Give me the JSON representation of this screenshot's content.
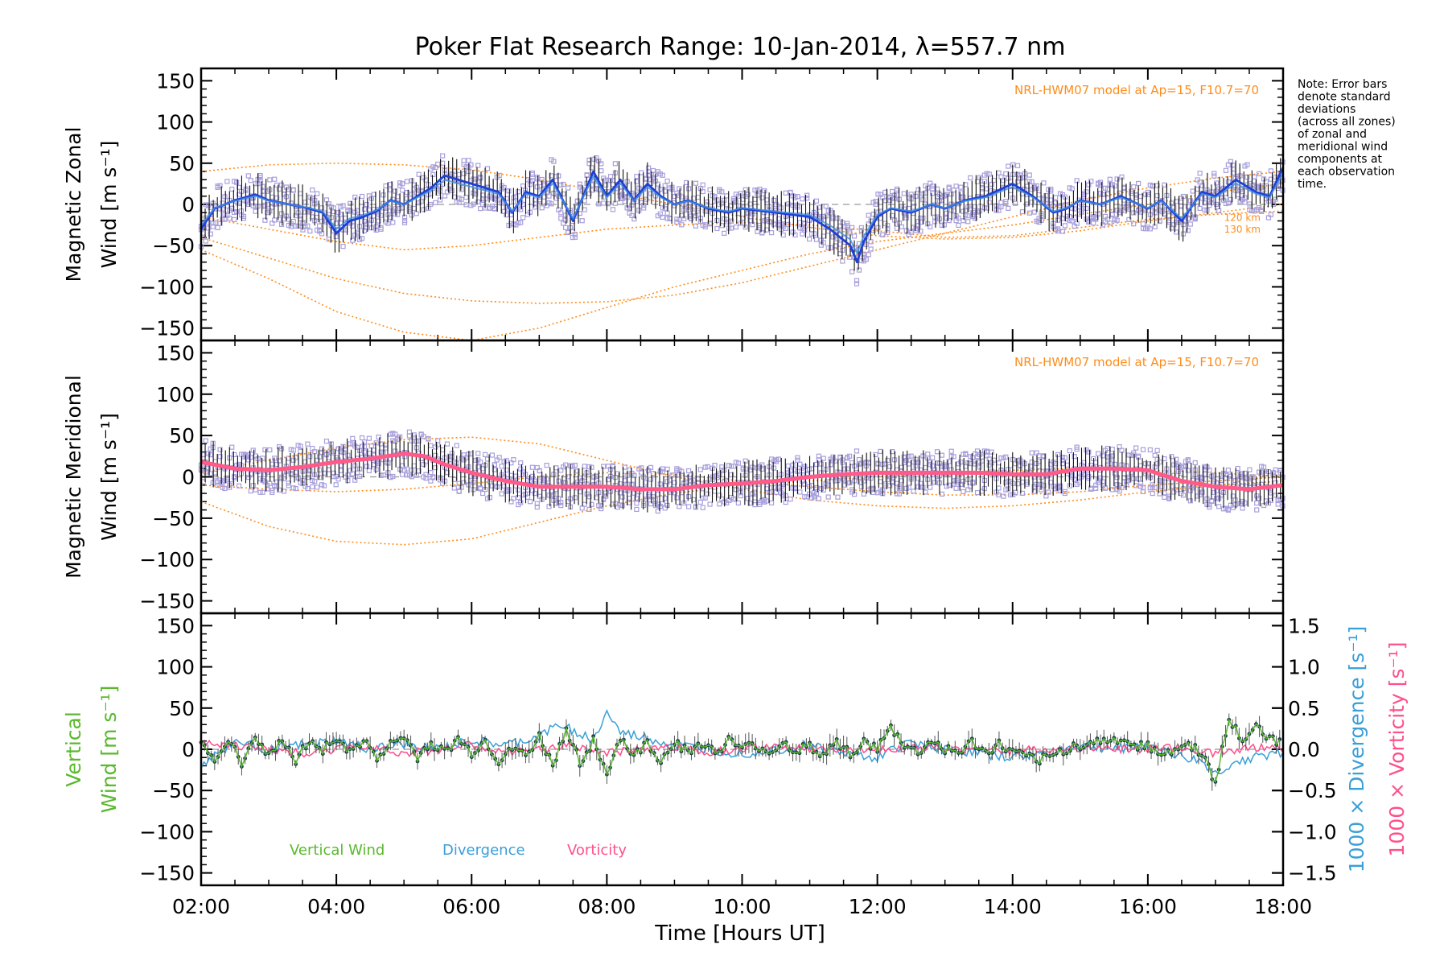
{
  "chart_data": {
    "type": "line",
    "title": "Poker Flat Research Range: 10-Jan-2014, λ=557.7 nm",
    "xlabel": "Time [Hours UT]",
    "xlim": [
      2,
      18
    ],
    "x_ticks": [
      2,
      4,
      6,
      8,
      10,
      12,
      14,
      16,
      18
    ],
    "x_tick_labels": [
      "02:00",
      "04:00",
      "06:00",
      "08:00",
      "10:00",
      "12:00",
      "14:00",
      "16:00",
      "18:00"
    ],
    "note": [
      "Note: Error bars",
      "denote standard",
      "deviations",
      "(across all zones)",
      "of zonal and",
      "meridional wind",
      "components at",
      "each observation",
      "time."
    ],
    "colors": {
      "zonal": "#1f3fd8",
      "zonal_mean": "#3f8fe6",
      "meridional": "#ff5a8a",
      "model": "#ff8c1a",
      "zones": "#a8a0dc",
      "vertical": "#5ab82d",
      "divergence": "#3a9fd8",
      "vorticity": "#ff4f8c",
      "vertical_points": "#1a3f4a",
      "error_bars": "#111111"
    },
    "panels": [
      {
        "id": "zonal",
        "ylabel_lines": [
          "Magnetic Zonal",
          "Wind"
        ],
        "yunit": "[m s⁻¹]",
        "ylim": [
          -165,
          165
        ],
        "y_ticks": [
          150,
          100,
          50,
          0,
          -50,
          -100,
          -150
        ],
        "y_tick_labels": [
          "150",
          "100",
          "50",
          "0",
          "−50",
          "−100",
          "−150"
        ],
        "annotation": "NRL-HWM07 model at Ap=15, F10.7=70",
        "model_labels": [
          "120 km",
          "130 km"
        ],
        "series": [
          {
            "name": "",
            "x": [
              2.0,
              2.2,
              2.5,
              2.8,
              3.0,
              3.3,
              3.6,
              3.8,
              4.0,
              4.2,
              4.4,
              4.6,
              4.8,
              5.0,
              5.2,
              5.4,
              5.6,
              5.8,
              6.0,
              6.2,
              6.4,
              6.6,
              6.8,
              7.0,
              7.2,
              7.5,
              7.8,
              8.0,
              8.2,
              8.4,
              8.6,
              8.8,
              9.0,
              9.2,
              9.5,
              9.8,
              10.0,
              10.5,
              11.0,
              11.3,
              11.6,
              11.7,
              11.8,
              12.0,
              12.2,
              12.5,
              12.8,
              13.0,
              13.3,
              13.6,
              14.0,
              14.3,
              14.6,
              14.8,
              15.0,
              15.3,
              15.6,
              16.0,
              16.2,
              16.5,
              16.8,
              17.0,
              17.3,
              17.6,
              17.8,
              18.0
            ],
            "y": [
              -30,
              -5,
              5,
              12,
              5,
              0,
              -5,
              -10,
              -35,
              -20,
              -15,
              -8,
              5,
              0,
              10,
              20,
              35,
              30,
              25,
              20,
              15,
              -10,
              15,
              10,
              30,
              -20,
              40,
              10,
              30,
              5,
              25,
              10,
              0,
              5,
              -5,
              -10,
              -5,
              -10,
              -15,
              -30,
              -50,
              -70,
              -45,
              -15,
              -5,
              -10,
              0,
              -5,
              5,
              10,
              25,
              10,
              -10,
              -5,
              5,
              0,
              10,
              -5,
              5,
              -20,
              15,
              10,
              30,
              15,
              10,
              45
            ]
          }
        ],
        "model_curves": [
          {
            "x": [
              2,
              3,
              4,
              5,
              6,
              7,
              8,
              9,
              10,
              11,
              12,
              13,
              14,
              15,
              16,
              17,
              18
            ],
            "y": [
              -55,
              -90,
              -130,
              -155,
              -165,
              -150,
              -125,
              -100,
              -80,
              -60,
              -45,
              -35,
              -25,
              -12,
              0,
              15,
              25
            ]
          },
          {
            "x": [
              2,
              3,
              4,
              5,
              6,
              7,
              8,
              9,
              10,
              11,
              12,
              13,
              14,
              15,
              16,
              17,
              18
            ],
            "y": [
              -40,
              -65,
              -90,
              -108,
              -117,
              -120,
              -118,
              -110,
              -95,
              -75,
              -55,
              -35,
              -15,
              5,
              20,
              32,
              40
            ]
          },
          {
            "x": [
              2,
              3,
              4,
              5,
              6,
              7,
              8,
              9,
              10,
              11,
              12,
              13,
              14,
              15,
              16,
              17,
              18
            ],
            "y": [
              -15,
              -30,
              -45,
              -55,
              -50,
              -40,
              -30,
              -25,
              -22,
              -25,
              -32,
              -40,
              -38,
              -28,
              -18,
              -12,
              -8
            ]
          },
          {
            "x": [
              2,
              3,
              4,
              5,
              6,
              7,
              8,
              9,
              10,
              11,
              12,
              13,
              14,
              15,
              16,
              17,
              18
            ],
            "y": [
              40,
              48,
              50,
              48,
              42,
              30,
              15,
              0,
              -15,
              -28,
              -38,
              -42,
              -40,
              -32,
              -20,
              -10,
              0
            ]
          }
        ]
      },
      {
        "id": "meridional",
        "ylabel_lines": [
          "Magnetic Meridional",
          "Wind"
        ],
        "yunit": "[m s⁻¹]",
        "ylim": [
          -165,
          165
        ],
        "y_ticks": [
          150,
          100,
          50,
          0,
          -50,
          -100,
          -150
        ],
        "y_tick_labels": [
          "150",
          "100",
          "50",
          "0",
          "−50",
          "−100",
          "−150"
        ],
        "annotation": "NRL-HWM07 model at Ap=15, F10.7=70",
        "series": [
          {
            "name": "",
            "x": [
              2.0,
              2.5,
              3.0,
              3.5,
              4.0,
              4.5,
              5.0,
              5.3,
              5.6,
              6.0,
              6.5,
              7.0,
              7.5,
              8.0,
              8.5,
              9.0,
              9.5,
              10.0,
              10.5,
              11.0,
              11.5,
              12.0,
              12.5,
              13.0,
              13.5,
              14.0,
              14.5,
              15.0,
              15.5,
              16.0,
              16.5,
              17.0,
              17.5,
              18.0
            ],
            "y": [
              18,
              10,
              8,
              12,
              18,
              22,
              28,
              25,
              15,
              5,
              -5,
              -12,
              -12,
              -12,
              -15,
              -15,
              -10,
              -8,
              -5,
              0,
              3,
              5,
              5,
              5,
              5,
              3,
              3,
              10,
              10,
              8,
              -5,
              -12,
              -15,
              -10
            ]
          }
        ],
        "model_curves": [
          {
            "x": [
              2,
              3,
              4,
              5,
              6,
              7,
              8,
              9,
              10,
              11,
              12,
              13,
              14,
              15,
              16,
              17,
              18
            ],
            "y": [
              -30,
              -60,
              -78,
              -82,
              -75,
              -55,
              -35,
              -20,
              -10,
              -5,
              0,
              5,
              8,
              10,
              8,
              5,
              0
            ]
          },
          {
            "x": [
              2,
              3,
              4,
              5,
              6,
              7,
              8,
              9,
              10,
              11,
              12,
              13,
              14,
              15,
              16,
              17,
              18
            ],
            "y": [
              5,
              20,
              35,
              45,
              48,
              40,
              20,
              0,
              -15,
              -28,
              -35,
              -38,
              -35,
              -28,
              -18,
              -10,
              -5
            ]
          },
          {
            "x": [
              2,
              3,
              4,
              5,
              6,
              7,
              8,
              9,
              10,
              11,
              12,
              13,
              14,
              15,
              16,
              17,
              18
            ],
            "y": [
              -10,
              -15,
              -18,
              -15,
              -8,
              0,
              5,
              3,
              -5,
              -12,
              -18,
              -22,
              -22,
              -18,
              -10,
              -5,
              0
            ]
          }
        ]
      },
      {
        "id": "vertical",
        "ylabel_lines": [
          "Vertical",
          "Wind"
        ],
        "yunit": "[m s⁻¹]",
        "ylim": [
          -165,
          165
        ],
        "y_ticks": [
          150,
          100,
          50,
          0,
          -50,
          -100,
          -150
        ],
        "y_tick_labels": [
          "150",
          "100",
          "50",
          "0",
          "−50",
          "−100",
          "−150"
        ],
        "y2lim": [
          -1.65,
          1.65
        ],
        "y2_ticks": [
          1.5,
          1.0,
          0.5,
          0.0,
          -0.5,
          -1.0,
          -1.5
        ],
        "y2_tick_labels": [
          "1.5",
          "1.0",
          "0.5",
          "0.0",
          "−0.5",
          "−1.0",
          "−1.5"
        ],
        "y2_label_divergence": "1000 × Divergence [s⁻¹]",
        "y2_label_vorticity": "1000 × Vorticity [s⁻¹]",
        "legend": [
          "Vertical Wind",
          "Divergence",
          "Vorticity"
        ],
        "series": [
          {
            "name": "Vertical Wind",
            "x": [
              2.0,
              2.2,
              2.4,
              2.6,
              2.8,
              3.0,
              3.2,
              3.4,
              3.6,
              3.8,
              4.0,
              4.2,
              4.4,
              4.6,
              4.8,
              5.0,
              5.2,
              5.4,
              5.6,
              5.8,
              6.0,
              6.2,
              6.4,
              6.6,
              6.8,
              7.0,
              7.2,
              7.4,
              7.6,
              7.8,
              8.0,
              8.2,
              8.4,
              8.6,
              8.8,
              9.0,
              9.2,
              9.4,
              9.6,
              9.8,
              10.0,
              10.2,
              10.4,
              10.6,
              10.8,
              11.0,
              11.2,
              11.4,
              11.6,
              11.8,
              12.0,
              12.2,
              12.4,
              12.6,
              12.8,
              13.0,
              13.2,
              13.4,
              13.6,
              13.8,
              14.0,
              14.2,
              14.4,
              14.6,
              14.8,
              15.0,
              15.2,
              15.4,
              15.6,
              15.8,
              16.0,
              16.2,
              16.4,
              16.6,
              16.8,
              17.0,
              17.2,
              17.4,
              17.6,
              17.8,
              18.0
            ],
            "y": [
              5,
              -10,
              10,
              -15,
              15,
              -5,
              8,
              -12,
              10,
              0,
              15,
              -5,
              10,
              -8,
              5,
              15,
              -10,
              8,
              -5,
              12,
              -5,
              10,
              -15,
              5,
              -10,
              15,
              -20,
              25,
              -15,
              10,
              -30,
              15,
              -10,
              8,
              -15,
              10,
              -5,
              8,
              -5,
              10,
              0,
              5,
              -5,
              8,
              -3,
              5,
              -8,
              10,
              -5,
              8,
              0,
              25,
              5,
              -5,
              10,
              0,
              -5,
              8,
              -5,
              5,
              -5,
              -10,
              -12,
              -8,
              0,
              5,
              8,
              10,
              12,
              5,
              5,
              -5,
              0,
              5,
              -5,
              -40,
              35,
              10,
              25,
              15,
              5
            ]
          },
          {
            "name": "Divergence",
            "x": [
              2.0,
              2.5,
              3.0,
              3.5,
              4.0,
              4.5,
              5.0,
              5.5,
              6.0,
              6.5,
              7.0,
              7.3,
              7.6,
              7.8,
              8.0,
              8.2,
              8.5,
              9.0,
              9.5,
              10.0,
              10.5,
              11.0,
              11.5,
              12.0,
              12.5,
              13.0,
              13.5,
              14.0,
              14.5,
              15.0,
              15.5,
              16.0,
              16.5,
              16.8,
              17.0,
              17.2,
              17.5,
              18.0
            ],
            "y": [
              -0.2,
              0.1,
              0.0,
              0.05,
              0.1,
              0.0,
              0.05,
              0.0,
              0.1,
              0.05,
              0.15,
              0.3,
              0.2,
              0.1,
              0.45,
              0.2,
              0.15,
              0.05,
              0.0,
              -0.05,
              0.0,
              0.05,
              -0.05,
              -0.1,
              0.1,
              0.0,
              -0.05,
              -0.1,
              -0.05,
              0.05,
              0.0,
              0.05,
              -0.1,
              -0.15,
              -0.3,
              -0.2,
              -0.1,
              -0.05
            ]
          },
          {
            "name": "Vorticity",
            "x": [
              2.0,
              2.5,
              3.0,
              3.5,
              4.0,
              4.5,
              5.0,
              5.5,
              6.0,
              6.5,
              7.0,
              7.5,
              8.0,
              8.5,
              9.0,
              9.5,
              10.0,
              10.5,
              11.0,
              11.5,
              12.0,
              12.5,
              13.0,
              13.5,
              14.0,
              14.5,
              15.0,
              15.5,
              16.0,
              16.5,
              17.0,
              17.5,
              18.0
            ],
            "y": [
              0.1,
              0.05,
              0.0,
              -0.05,
              0.0,
              0.05,
              -0.05,
              0.0,
              0.05,
              -0.05,
              0.0,
              0.05,
              -0.05,
              0.0,
              0.03,
              -0.03,
              0.0,
              0.02,
              0.0,
              -0.02,
              0.0,
              0.02,
              0.0,
              0.0,
              -0.02,
              0.0,
              0.02,
              0.0,
              0.0,
              0.02,
              -0.05,
              0.03,
              0.0
            ]
          }
        ]
      }
    ]
  }
}
